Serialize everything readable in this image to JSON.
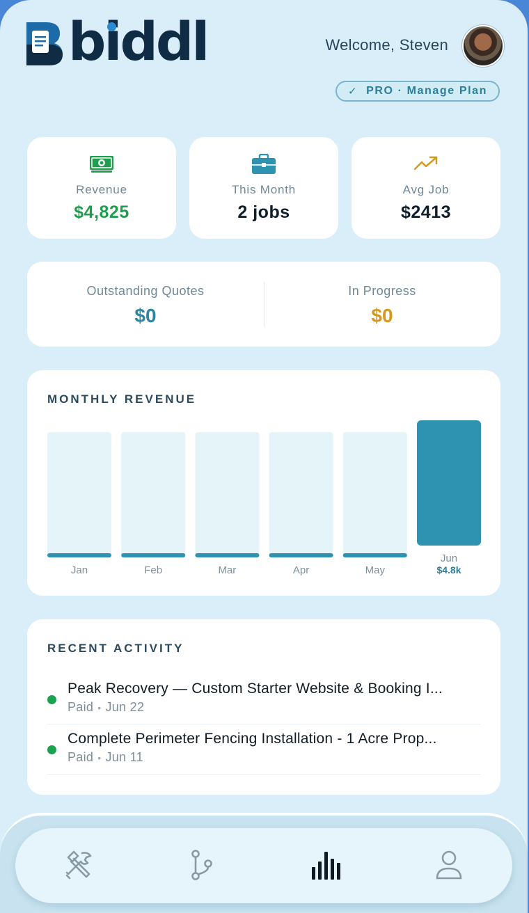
{
  "brand": {
    "name": "biddl"
  },
  "header": {
    "welcome": "Welcome, Steven",
    "plan_check": "✓",
    "plan_label": "PRO · Manage Plan"
  },
  "stats": [
    {
      "icon": "cash-icon",
      "label": "Revenue",
      "value": "$4,825",
      "color": "#1e9e4e"
    },
    {
      "icon": "briefcase-icon",
      "label": "This Month",
      "value": "2 jobs",
      "color": "#0e1e2c"
    },
    {
      "icon": "trending-up-icon",
      "label": "Avg Job",
      "value": "$2413",
      "color": "#0e1e2c"
    }
  ],
  "pipeline": {
    "outstanding": {
      "label": "Outstanding Quotes",
      "value": "$0",
      "color": "#2b86a3"
    },
    "in_progress": {
      "label": "In Progress",
      "value": "$0",
      "color": "#d39a1e"
    }
  },
  "chart_data": {
    "type": "bar",
    "title": "MONTHLY REVENUE",
    "categories": [
      "Jan",
      "Feb",
      "Mar",
      "Apr",
      "May",
      "Jun"
    ],
    "values": [
      0,
      0,
      0,
      0,
      0,
      4825
    ],
    "data_labels": [
      "",
      "",
      "",
      "",
      "",
      "$4.8k"
    ],
    "highlight_index": 5,
    "bar_color": "#2e93b0",
    "track_color": "#e4f4f8"
  },
  "activity": {
    "title": "RECENT ACTIVITY",
    "items": [
      {
        "title": "Peak Recovery — Custom Starter Website & Booking I...",
        "status": "Paid",
        "date": "Jun 22"
      },
      {
        "title": "Complete Perimeter Fencing Installation - 1 Acre Prop...",
        "status": "Paid",
        "date": "Jun 11"
      }
    ]
  },
  "nav": {
    "items": [
      {
        "icon": "tools-icon",
        "active": false
      },
      {
        "icon": "pipeline-icon",
        "active": false
      },
      {
        "icon": "bar-chart-icon",
        "active": true
      },
      {
        "icon": "profile-icon",
        "active": false
      }
    ]
  }
}
